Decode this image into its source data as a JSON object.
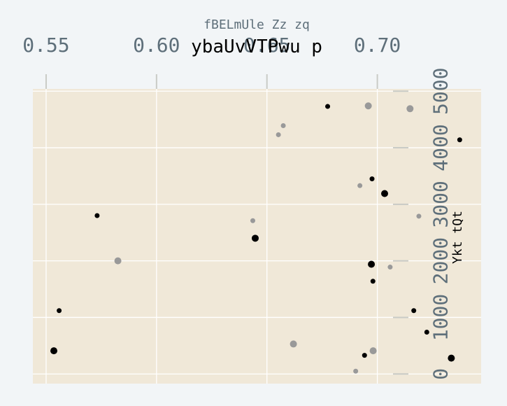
{
  "chart_data": {
    "type": "scatter",
    "title": "ybaUvVTPwu p",
    "xlabel": "fBELmUle Zz zq",
    "ylabel": "Ykt tQt",
    "xlim": [
      0.544,
      0.747
    ],
    "ylim": [
      -170,
      5040
    ],
    "x_ticks": [
      "0.55",
      "0.60",
      "0.65",
      "0.70"
    ],
    "x_tick_values": [
      0.55,
      0.6,
      0.65,
      0.7
    ],
    "y_ticks": [
      "0",
      "1000",
      "2000",
      "3000",
      "4000",
      "5000"
    ],
    "y_tick_values": [
      0,
      1000,
      2000,
      3000,
      4000,
      5000
    ],
    "grid": true,
    "legend": "none",
    "colors": {
      "plot_bg": "#f0e8d8",
      "grid": "#ffffff",
      "tick_text": "#5e6f7a",
      "series_a": "#000000",
      "series_b": "#999999"
    },
    "series": [
      {
        "color": "#000000",
        "points": [
          {
            "x": 0.6775,
            "y": 4730,
            "s": 3.5
          },
          {
            "x": 0.7373,
            "y": 4140,
            "s": 3.5
          },
          {
            "x": 0.6976,
            "y": 3450,
            "s": 3.5
          },
          {
            "x": 0.7033,
            "y": 3190,
            "s": 5
          },
          {
            "x": 0.5731,
            "y": 2800,
            "s": 3.5
          },
          {
            "x": 0.6447,
            "y": 2400,
            "s": 5
          },
          {
            "x": 0.6973,
            "y": 1940,
            "s": 5
          },
          {
            "x": 0.698,
            "y": 1640,
            "s": 3.5
          },
          {
            "x": 0.5559,
            "y": 1120,
            "s": 3.5
          },
          {
            "x": 0.7165,
            "y": 1120,
            "s": 3.5
          },
          {
            "x": 0.7224,
            "y": 740,
            "s": 3.5
          },
          {
            "x": 0.5535,
            "y": 410,
            "s": 5
          },
          {
            "x": 0.6942,
            "y": 330,
            "s": 3.5
          },
          {
            "x": 0.7335,
            "y": 280,
            "s": 5
          }
        ]
      },
      {
        "color": "#999999",
        "points": [
          {
            "x": 0.6959,
            "y": 4740,
            "s": 5
          },
          {
            "x": 0.7148,
            "y": 4690,
            "s": 5
          },
          {
            "x": 0.6574,
            "y": 4390,
            "s": 3.5
          },
          {
            "x": 0.6552,
            "y": 4230,
            "s": 3.5
          },
          {
            "x": 0.6921,
            "y": 3330,
            "s": 3.5
          },
          {
            "x": 0.6436,
            "y": 2710,
            "s": 3.5
          },
          {
            "x": 0.7188,
            "y": 2790,
            "s": 3.5
          },
          {
            "x": 0.5825,
            "y": 2000,
            "s": 5
          },
          {
            "x": 0.7058,
            "y": 1890,
            "s": 3.5
          },
          {
            "x": 0.662,
            "y": 530,
            "s": 5
          },
          {
            "x": 0.6981,
            "y": 410,
            "s": 5
          },
          {
            "x": 0.6902,
            "y": 50,
            "s": 3.5
          }
        ]
      }
    ]
  }
}
